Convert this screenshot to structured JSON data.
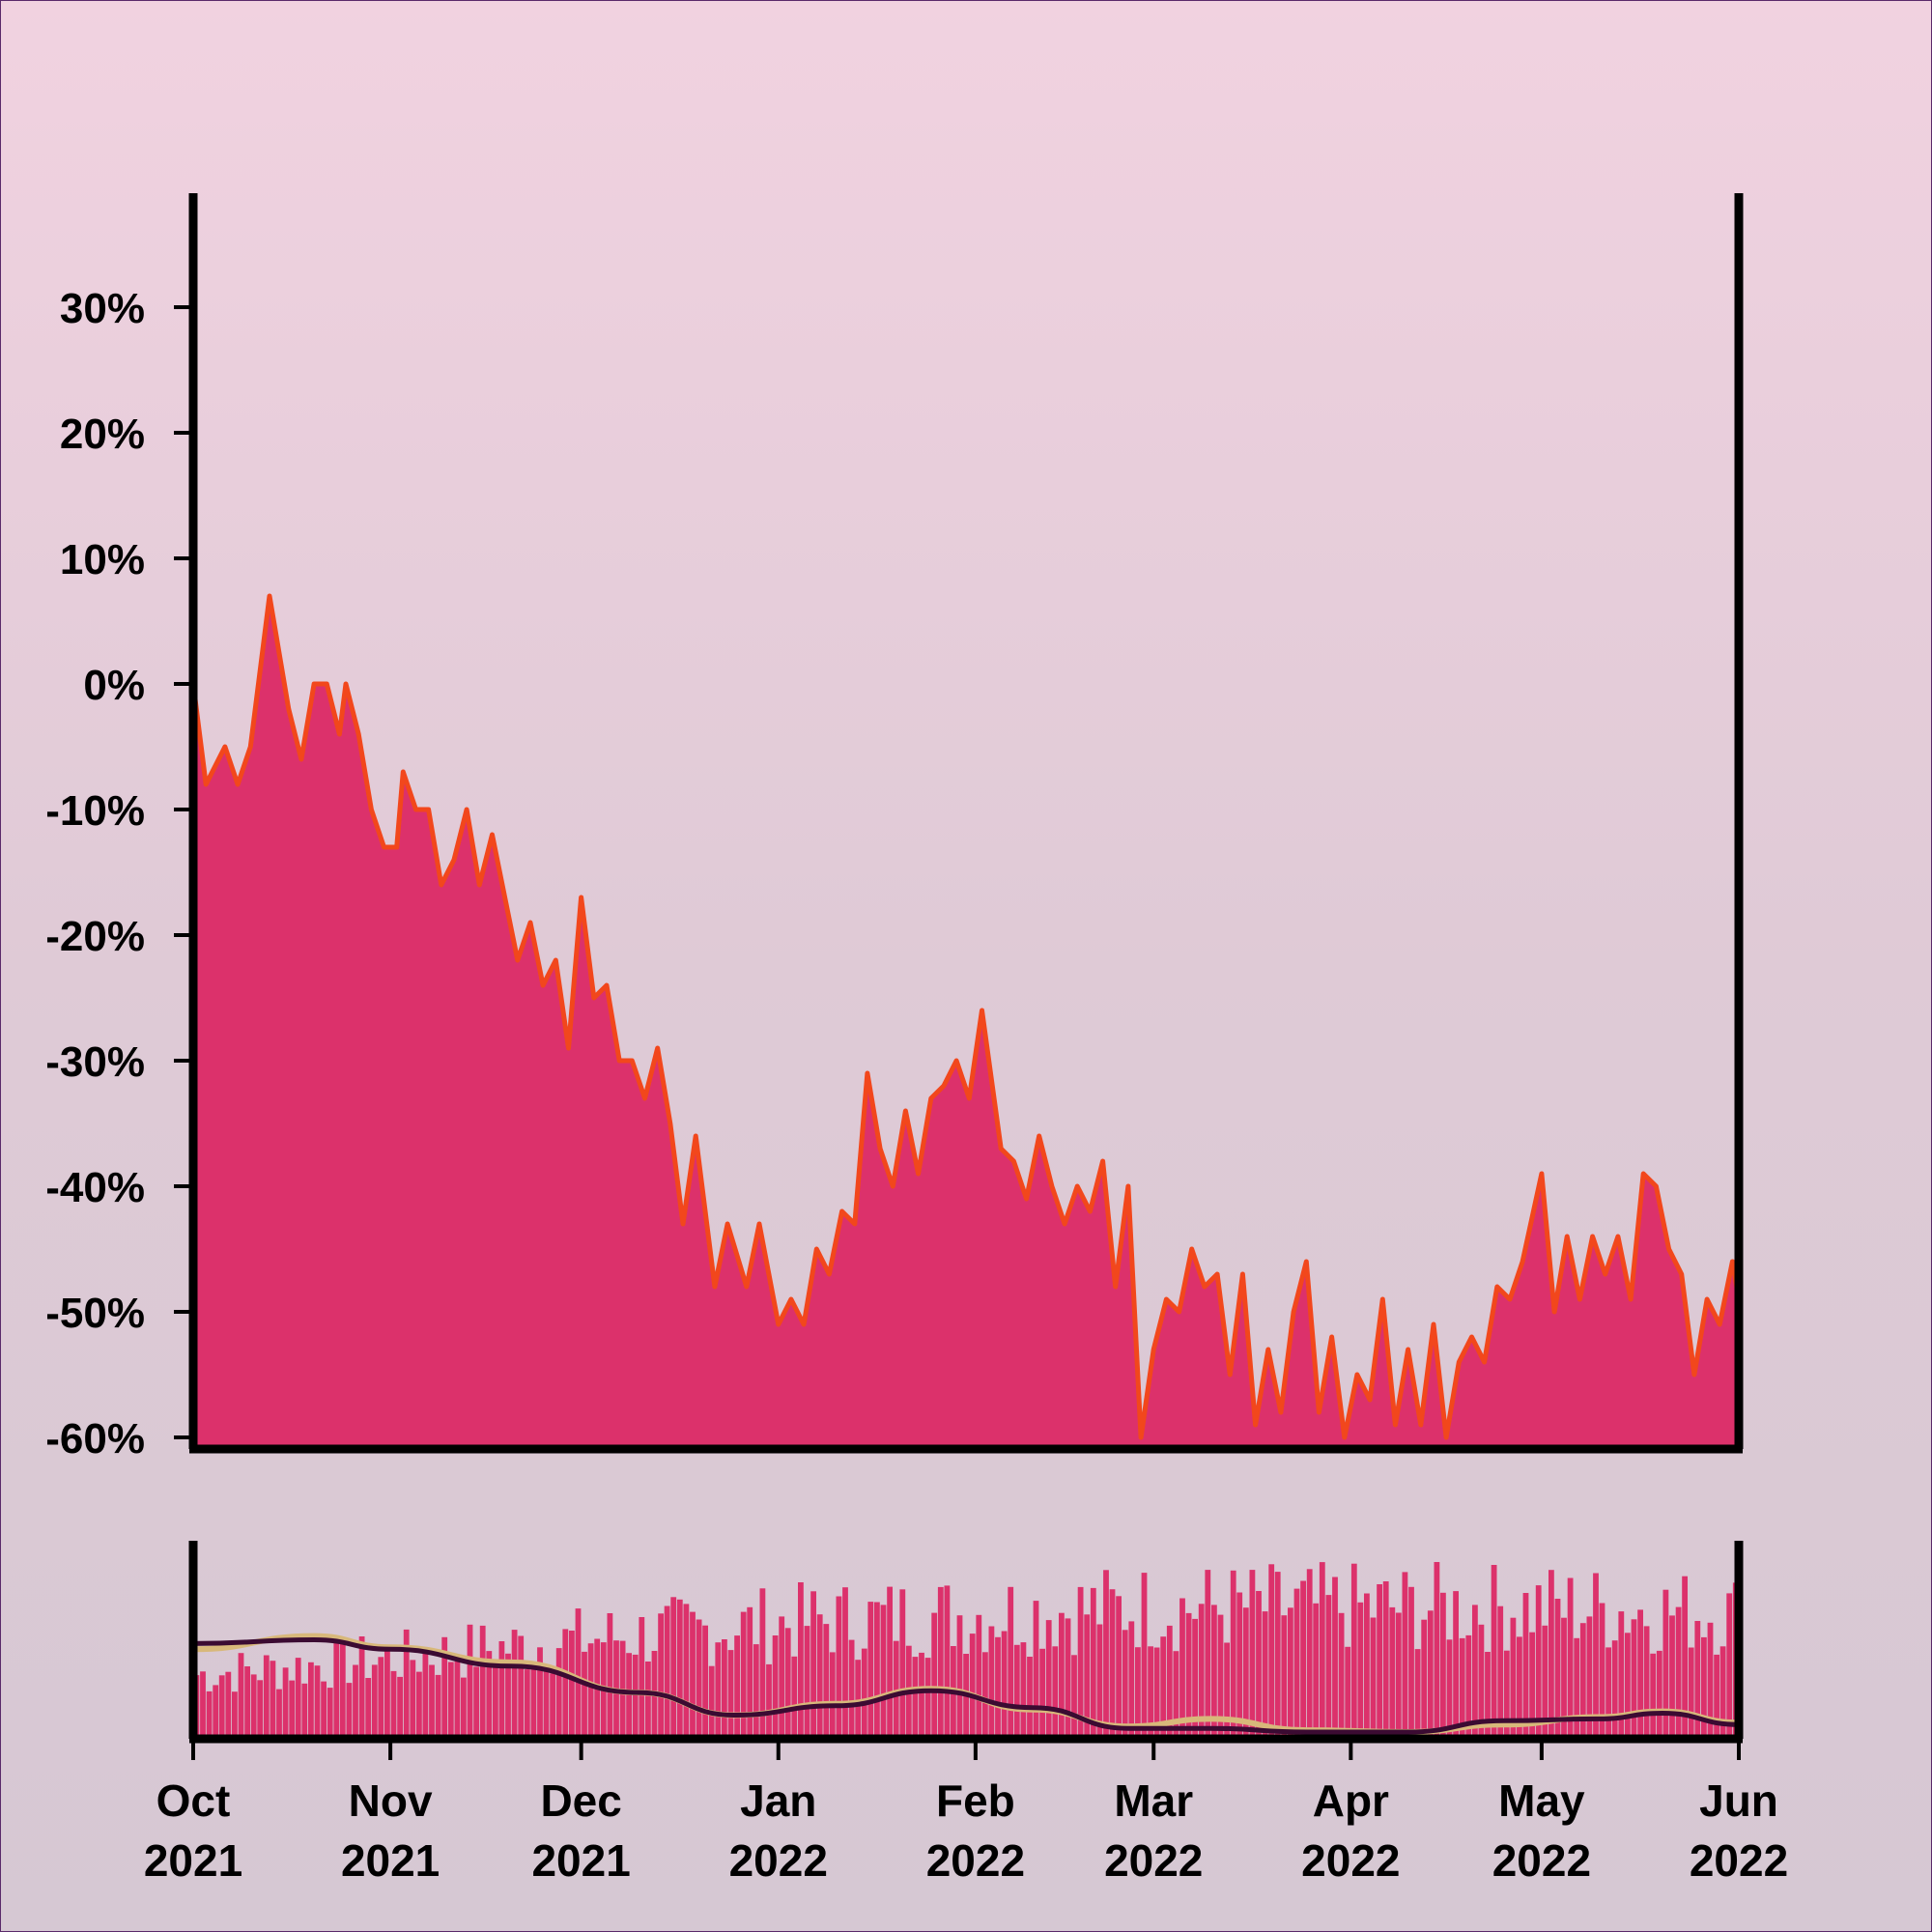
{
  "colors": {
    "area_fill": "#dc316b",
    "line": "#f2471c",
    "volume": "#dc316b",
    "ma_fast": "#d8b87a",
    "ma_slow": "#3b0b32",
    "axis": "#000000"
  },
  "chart_data": [
    {
      "type": "area",
      "title": "",
      "xlabel": "",
      "ylabel": "",
      "ylim": [
        -60,
        38
      ],
      "y_ticks": [
        30,
        20,
        10,
        0,
        -10,
        -20,
        -30,
        -40,
        -50,
        -60
      ],
      "y_tick_labels": [
        "30%",
        "20%",
        "10%",
        "0%",
        "-10%",
        "-20%",
        "-30%",
        "-40%",
        "-50%",
        "-60%"
      ],
      "x_start": "2021-10-01",
      "x_end": "2022-06-01",
      "grid": false,
      "series": [
        {
          "points": [
            [
              "2021-10-01",
              0
            ],
            [
              "2021-10-03",
              -8
            ],
            [
              "2021-10-06",
              -5
            ],
            [
              "2021-10-08",
              -8
            ],
            [
              "2021-10-10",
              -5
            ],
            [
              "2021-10-13",
              7
            ],
            [
              "2021-10-16",
              -2
            ],
            [
              "2021-10-18",
              -6
            ],
            [
              "2021-10-20",
              0
            ],
            [
              "2021-10-22",
              0
            ],
            [
              "2021-10-24",
              -4
            ],
            [
              "2021-10-25",
              0
            ],
            [
              "2021-10-27",
              -4
            ],
            [
              "2021-10-29",
              -10
            ],
            [
              "2021-10-31",
              -13
            ],
            [
              "2021-11-02",
              -13
            ],
            [
              "2021-11-03",
              -7
            ],
            [
              "2021-11-05",
              -10
            ],
            [
              "2021-11-07",
              -10
            ],
            [
              "2021-11-09",
              -16
            ],
            [
              "2021-11-11",
              -14
            ],
            [
              "2021-11-13",
              -10
            ],
            [
              "2021-11-15",
              -16
            ],
            [
              "2021-11-17",
              -12
            ],
            [
              "2021-11-19",
              -17
            ],
            [
              "2021-11-21",
              -22
            ],
            [
              "2021-11-23",
              -19
            ],
            [
              "2021-11-25",
              -24
            ],
            [
              "2021-11-27",
              -22
            ],
            [
              "2021-11-29",
              -29
            ],
            [
              "2021-12-01",
              -17
            ],
            [
              "2021-12-03",
              -25
            ],
            [
              "2021-12-05",
              -24
            ],
            [
              "2021-12-07",
              -30
            ],
            [
              "2021-12-09",
              -30
            ],
            [
              "2021-12-11",
              -33
            ],
            [
              "2021-12-13",
              -29
            ],
            [
              "2021-12-15",
              -35
            ],
            [
              "2021-12-17",
              -43
            ],
            [
              "2021-12-19",
              -36
            ],
            [
              "2021-12-22",
              -48
            ],
            [
              "2021-12-24",
              -43
            ],
            [
              "2021-12-27",
              -48
            ],
            [
              "2021-12-29",
              -43
            ],
            [
              "2022-01-01",
              -51
            ],
            [
              "2022-01-03",
              -49
            ],
            [
              "2022-01-05",
              -51
            ],
            [
              "2022-01-07",
              -45
            ],
            [
              "2022-01-09",
              -47
            ],
            [
              "2022-01-11",
              -42
            ],
            [
              "2022-01-13",
              -43
            ],
            [
              "2022-01-15",
              -31
            ],
            [
              "2022-01-17",
              -37
            ],
            [
              "2022-01-19",
              -40
            ],
            [
              "2022-01-21",
              -34
            ],
            [
              "2022-01-23",
              -39
            ],
            [
              "2022-01-25",
              -33
            ],
            [
              "2022-01-27",
              -32
            ],
            [
              "2022-01-29",
              -30
            ],
            [
              "2022-01-31",
              -33
            ],
            [
              "2022-02-02",
              -26
            ],
            [
              "2022-02-05",
              -37
            ],
            [
              "2022-02-07",
              -38
            ],
            [
              "2022-02-09",
              -41
            ],
            [
              "2022-02-11",
              -36
            ],
            [
              "2022-02-13",
              -40
            ],
            [
              "2022-02-15",
              -43
            ],
            [
              "2022-02-17",
              -40
            ],
            [
              "2022-02-19",
              -42
            ],
            [
              "2022-02-21",
              -38
            ],
            [
              "2022-02-23",
              -48
            ],
            [
              "2022-02-25",
              -40
            ],
            [
              "2022-02-27",
              -60
            ],
            [
              "2022-03-01",
              -53
            ],
            [
              "2022-03-03",
              -49
            ],
            [
              "2022-03-05",
              -50
            ],
            [
              "2022-03-07",
              -45
            ],
            [
              "2022-03-09",
              -48
            ],
            [
              "2022-03-11",
              -47
            ],
            [
              "2022-03-13",
              -55
            ],
            [
              "2022-03-15",
              -47
            ],
            [
              "2022-03-17",
              -59
            ],
            [
              "2022-03-19",
              -53
            ],
            [
              "2022-03-21",
              -58
            ],
            [
              "2022-03-23",
              -50
            ],
            [
              "2022-03-25",
              -46
            ],
            [
              "2022-03-27",
              -58
            ],
            [
              "2022-03-29",
              -52
            ],
            [
              "2022-03-31",
              -60
            ],
            [
              "2022-04-02",
              -55
            ],
            [
              "2022-04-04",
              -57
            ],
            [
              "2022-04-06",
              -49
            ],
            [
              "2022-04-08",
              -59
            ],
            [
              "2022-04-10",
              -53
            ],
            [
              "2022-04-12",
              -59
            ],
            [
              "2022-04-14",
              -51
            ],
            [
              "2022-04-16",
              -60
            ],
            [
              "2022-04-18",
              -54
            ],
            [
              "2022-04-20",
              -52
            ],
            [
              "2022-04-22",
              -54
            ],
            [
              "2022-04-24",
              -48
            ],
            [
              "2022-04-26",
              -49
            ],
            [
              "2022-04-28",
              -46
            ],
            [
              "2022-05-01",
              -39
            ],
            [
              "2022-05-03",
              -50
            ],
            [
              "2022-05-05",
              -44
            ],
            [
              "2022-05-07",
              -49
            ],
            [
              "2022-05-09",
              -44
            ],
            [
              "2022-05-11",
              -47
            ],
            [
              "2022-05-13",
              -44
            ],
            [
              "2022-05-15",
              -49
            ],
            [
              "2022-05-17",
              -39
            ],
            [
              "2022-05-19",
              -40
            ],
            [
              "2022-05-21",
              -45
            ],
            [
              "2022-05-23",
              -47
            ],
            [
              "2022-05-25",
              -55
            ],
            [
              "2022-05-27",
              -49
            ],
            [
              "2022-05-29",
              -51
            ],
            [
              "2022-05-31",
              -46
            ],
            [
              "2022-06-01",
              -49
            ]
          ]
        }
      ]
    },
    {
      "type": "bar",
      "title": "",
      "ylabel": "",
      "x_start": "2021-10-01",
      "x_end": "2022-06-01",
      "x_ticks": [
        "2021-10-01",
        "2021-11-01",
        "2021-12-01",
        "2022-01-01",
        "2022-02-01",
        "2022-03-01",
        "2022-04-01",
        "2022-05-01",
        "2022-06-01"
      ],
      "x_tick_labels": [
        [
          "Oct",
          "2021"
        ],
        [
          "Nov",
          "2021"
        ],
        [
          "Dec",
          "2021"
        ],
        [
          "Jan",
          "2022"
        ],
        [
          "Feb",
          "2022"
        ],
        [
          "Mar",
          "2022"
        ],
        [
          "Apr",
          "2022"
        ],
        [
          "May",
          "2022"
        ],
        [
          "Jun",
          "2022"
        ]
      ],
      "volume_level": [
        [
          "2021-10-01",
          0.4
        ],
        [
          "2021-11-01",
          0.5
        ],
        [
          "2021-12-01",
          0.62
        ],
        [
          "2022-01-01",
          0.72
        ],
        [
          "2022-02-01",
          0.78
        ],
        [
          "2022-03-01",
          0.82
        ],
        [
          "2022-04-01",
          0.82
        ],
        [
          "2022-05-01",
          0.82
        ],
        [
          "2022-06-01",
          0.78
        ]
      ],
      "ma_fast": [
        [
          "2021-10-01",
          0.45
        ],
        [
          "2021-10-20",
          0.52
        ],
        [
          "2021-11-01",
          0.46
        ],
        [
          "2021-11-20",
          0.38
        ],
        [
          "2021-12-10",
          0.22
        ],
        [
          "2021-12-25",
          0.1
        ],
        [
          "2022-01-10",
          0.16
        ],
        [
          "2022-01-25",
          0.24
        ],
        [
          "2022-02-10",
          0.13
        ],
        [
          "2022-02-25",
          0.04
        ],
        [
          "2022-03-10",
          0.08
        ],
        [
          "2022-03-25",
          0.02
        ],
        [
          "2022-04-10",
          0.01
        ],
        [
          "2022-04-25",
          0.05
        ],
        [
          "2022-05-10",
          0.09
        ],
        [
          "2022-05-20",
          0.12
        ],
        [
          "2022-06-01",
          0.06
        ]
      ],
      "ma_slow": [
        [
          "2021-10-01",
          0.48
        ],
        [
          "2021-10-20",
          0.5
        ],
        [
          "2021-11-01",
          0.45
        ],
        [
          "2021-11-20",
          0.36
        ],
        [
          "2021-12-10",
          0.22
        ],
        [
          "2021-12-25",
          0.1
        ],
        [
          "2022-01-10",
          0.15
        ],
        [
          "2022-01-25",
          0.23
        ],
        [
          "2022-02-10",
          0.14
        ],
        [
          "2022-02-25",
          0.03
        ],
        [
          "2022-03-10",
          0.03
        ],
        [
          "2022-03-25",
          0.01
        ],
        [
          "2022-04-10",
          0.01
        ],
        [
          "2022-04-25",
          0.07
        ],
        [
          "2022-05-10",
          0.08
        ],
        [
          "2022-05-20",
          0.11
        ],
        [
          "2022-06-01",
          0.05
        ]
      ]
    }
  ]
}
